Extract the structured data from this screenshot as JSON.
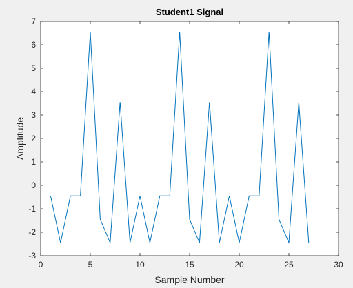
{
  "chart_data": {
    "type": "line",
    "title": "Student1 Signal",
    "xlabel": "Sample Number",
    "ylabel": "Amplitude",
    "xlim": [
      0,
      30
    ],
    "ylim": [
      -3,
      7
    ],
    "xticks": [
      0,
      5,
      10,
      15,
      20,
      25,
      30
    ],
    "yticks": [
      -3,
      -2,
      -1,
      0,
      1,
      2,
      3,
      4,
      5,
      6,
      7
    ],
    "grid": false,
    "legend": "none",
    "series": [
      {
        "color": "#0072bd",
        "x": [
          1,
          2,
          3,
          4,
          5,
          6,
          7,
          8,
          9,
          10,
          11,
          12,
          13,
          14,
          15,
          16,
          17,
          18,
          19,
          20,
          21,
          22,
          23,
          24,
          25,
          26,
          27
        ],
        "y": [
          -0.45,
          -2.45,
          -0.45,
          -0.45,
          6.55,
          -1.45,
          -2.45,
          3.55,
          -2.45,
          -0.45,
          -2.45,
          -0.45,
          -0.45,
          6.55,
          -1.45,
          -2.45,
          3.55,
          -2.45,
          -0.45,
          -2.45,
          -0.45,
          -0.45,
          6.55,
          -1.45,
          -2.45,
          3.55,
          -2.45
        ]
      }
    ]
  },
  "colors": {
    "figure_background": "#f0f0f0",
    "axes_background": "#ffffff",
    "axes_color": "#262626",
    "line": "#0072bd"
  }
}
